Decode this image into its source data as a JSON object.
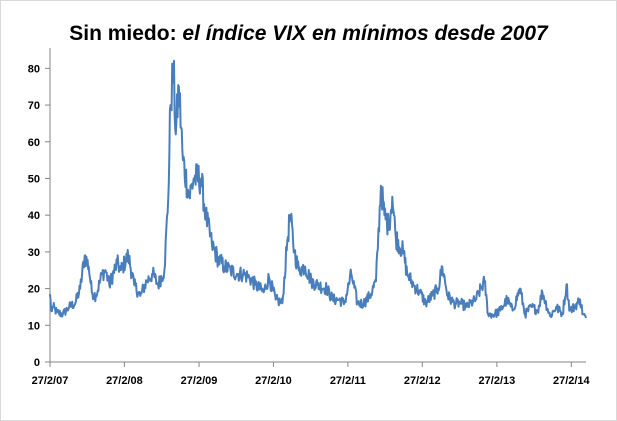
{
  "title": {
    "plain": "Sin miedo: ",
    "italic": "el índice VIX en mínimos desde 2007"
  },
  "chart_data": {
    "type": "line",
    "title": "Sin miedo: el índice VIX en mínimos desde 2007",
    "xlabel": "",
    "ylabel": "",
    "ylim": [
      0,
      85
    ],
    "xlim": [
      "2007-02-27",
      "2014-05-10"
    ],
    "yticks": [
      "0",
      "10",
      "20",
      "30",
      "40",
      "50",
      "60",
      "70",
      "80"
    ],
    "xticks": [
      "27/2/07",
      "27/2/08",
      "27/2/09",
      "27/2/10",
      "27/2/11",
      "27/2/12",
      "27/2/13",
      "27/2/14"
    ],
    "grid": false,
    "legend": "none",
    "line_color": "#4a7ebb",
    "series": [
      {
        "x": [
          "2007-02-27",
          "2007-03-05",
          "2007-03-15",
          "2007-04-01",
          "2007-05-01",
          "2007-06-01",
          "2007-07-01",
          "2007-07-25",
          "2007-08-16",
          "2007-09-05",
          "2007-09-20",
          "2007-10-10",
          "2007-11-10",
          "2007-11-26",
          "2007-12-15",
          "2008-01-22",
          "2008-02-10",
          "2008-03-17",
          "2008-04-15",
          "2008-05-15",
          "2008-06-15",
          "2008-07-15",
          "2008-08-10",
          "2008-09-10",
          "2008-09-29",
          "2008-10-10",
          "2008-10-24",
          "2008-11-05",
          "2008-11-20",
          "2008-12-10",
          "2009-01-10",
          "2009-02-01",
          "2009-03-09",
          "2009-04-01",
          "2009-05-01",
          "2009-06-01",
          "2009-07-01",
          "2009-08-01",
          "2009-09-01",
          "2009-10-01",
          "2009-11-01",
          "2009-12-01",
          "2010-01-10",
          "2010-02-05",
          "2010-03-10",
          "2010-04-12",
          "2010-05-06",
          "2010-05-20",
          "2010-06-10",
          "2010-07-01",
          "2010-08-01",
          "2010-09-01",
          "2010-10-01",
          "2010-11-15",
          "2010-12-15",
          "2011-01-15",
          "2011-02-10",
          "2011-03-16",
          "2011-04-15",
          "2011-05-15",
          "2011-06-15",
          "2011-07-15",
          "2011-08-08",
          "2011-08-25",
          "2011-09-15",
          "2011-10-03",
          "2011-10-20",
          "2011-11-25",
          "2011-12-15",
          "2012-01-15",
          "2012-02-15",
          "2012-03-15",
          "2012-04-15",
          "2012-05-15",
          "2012-06-04",
          "2012-07-01",
          "2012-08-01",
          "2012-09-01",
          "2012-10-01",
          "2012-11-15",
          "2012-12-28",
          "2013-01-15",
          "2013-02-15",
          "2013-03-15",
          "2013-04-18",
          "2013-05-15",
          "2013-06-20",
          "2013-07-15",
          "2013-08-15",
          "2013-09-15",
          "2013-10-08",
          "2013-11-15",
          "2013-12-15",
          "2014-01-15",
          "2014-02-03",
          "2014-02-20",
          "2014-03-14",
          "2014-04-11",
          "2014-04-25",
          "2014-05-10"
        ],
        "y": [
          18.5,
          14,
          15,
          13.5,
          13,
          15,
          16,
          20,
          29,
          26,
          19,
          18,
          24,
          25,
          21,
          27,
          25,
          29,
          21,
          18,
          22,
          24,
          21,
          25,
          45,
          70,
          80,
          62,
          75,
          55,
          45,
          50,
          50,
          40,
          32,
          28,
          26,
          25,
          24,
          24,
          23,
          21,
          19,
          23,
          17,
          16,
          33,
          40,
          30,
          25,
          26,
          22,
          21,
          20,
          17,
          17,
          16,
          24,
          16,
          16,
          18,
          22,
          48,
          40,
          37,
          45,
          34,
          30,
          24,
          21,
          19,
          16,
          18,
          20,
          26,
          18,
          16,
          16,
          15,
          17,
          22,
          13,
          13,
          14,
          17,
          14,
          20,
          13,
          15,
          14,
          19,
          12.5,
          15,
          13,
          21,
          14,
          15,
          17,
          13,
          12
        ]
      }
    ]
  }
}
